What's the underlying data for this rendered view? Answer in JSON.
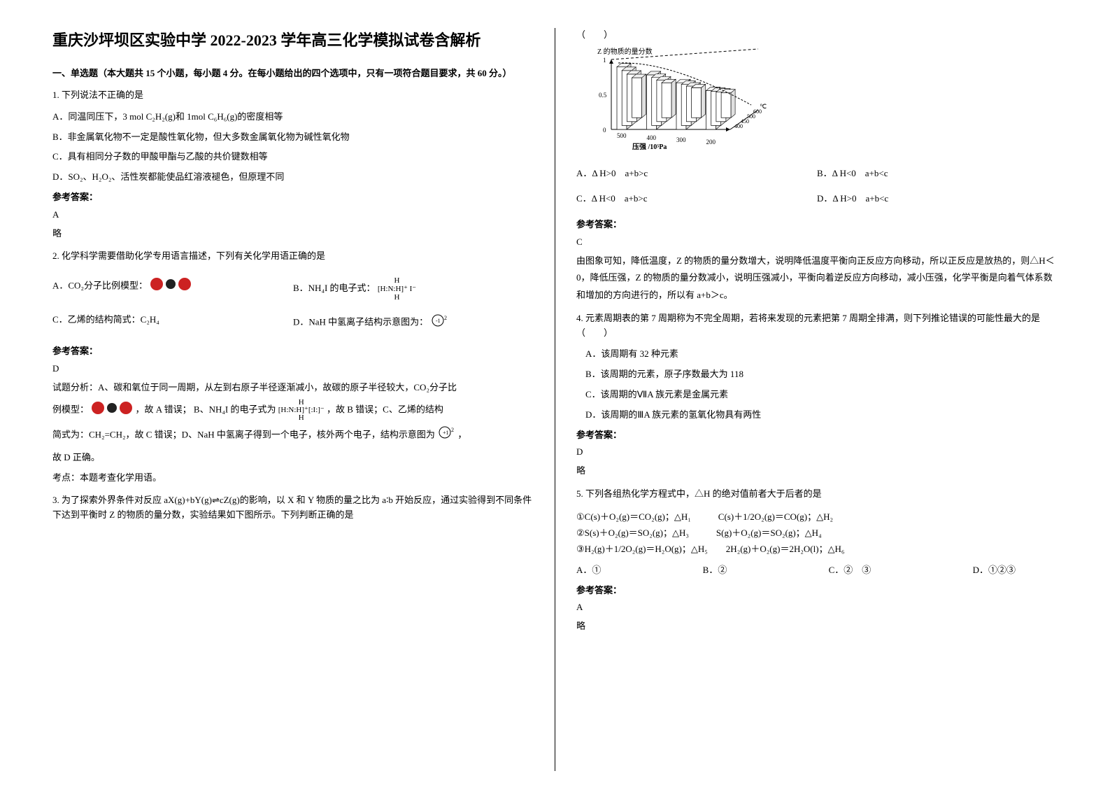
{
  "title": "重庆沙坪坝区实验中学 2022-2023 学年高三化学模拟试卷含解析",
  "section1": "一、单选题（本大题共 15 个小题，每小题 4 分。在每小题给出的四个选项中，只有一项符合题目要求，共 60 分。）",
  "answer_label": "参考答案：",
  "q1": {
    "stem": "1. 下列说法不正确的是",
    "A": "A．同温同压下，3 mol C₂H₂(g)和 1mol C₆H₆(g)的密度相等",
    "B": "B．非金属氧化物不一定是酸性氧化物，但大多数金属氧化物为碱性氧化物",
    "C": "C．具有相同分子数的甲酸甲酯与乙酸的共价键数相等",
    "D": "D．SO₂、H₂O₂、活性炭都能使品红溶液褪色，但原理不同",
    "ans": "A",
    "note": "略"
  },
  "q2": {
    "stem": "2. 化学科学需要借助化学专用语言描述，下列有关化学用语正确的是",
    "A_pre": "A．CO₂分子比例模型：",
    "B_pre": "B．NH₄I 的电子式：",
    "B_formula": "[H:N:H]⁺ I⁻",
    "C": "C．乙烯的结构简式：C₂H₄",
    "D_pre": "D．NaH 中氢离子结构示意图为：",
    "ans": "D",
    "exp1_pre": "试题分析：A、碳和氧位于同一周期，从左到右原子半径逐渐减小，故碳的原子半径较大，CO₂分子比",
    "exp2_pre": "例模型：",
    "exp2_mid": "，故 A 错误； B、NH₄I 的电子式为",
    "exp2_post": "，故 B 错误；C、乙烯的结构",
    "exp3_pre": "简式为：CH₂=CH₂，故 C 错误；D、NaH 中氢离子得到一个电子，核外两个电子，结构示意图为",
    "exp3_post": "，",
    "exp4": "故 D 正确。",
    "exp5": "考点：本题考查化学用语。"
  },
  "q3": {
    "stem": "3. 为了探索外界条件对反应 aX(g)+bY(g)⇌cZ(g)的影响，以 X 和 Y 物质的量之比为 a∶b 开始反应，通过实验得到不同条件下达到平衡时 Z 的物质的量分数，实验结果如下图所示。下列判断正确的是",
    "paren": "（　　）",
    "chart": {
      "ylabel": "Z 的物质的量分数",
      "xlabel": "压强 /10⁵Pa",
      "xticks": [
        "500",
        "400",
        "300",
        "200"
      ],
      "templabels": [
        "400",
        "450",
        "500",
        "600"
      ],
      "tempunit": "℃",
      "ymax": 1,
      "ymid": 0.5,
      "colors": {
        "axis": "#000000",
        "bar_fill": "#ffffff",
        "bar_stroke": "#000000",
        "curve": "#000000",
        "dashed": "#000000"
      }
    },
    "A": "A．Δ H>0　a+b>c",
    "B": "B．Δ H<0　a+b<c",
    "C": "C．Δ H<0　a+b>c",
    "D": "D．Δ H>0　a+b<c",
    "ans": "C",
    "exp": "由图象可知，降低温度，Z 的物质的量分数增大，说明降低温度平衡向正反应方向移动，所以正反应是放热的，则△H＜0，降低压强，Z 的物质的量分数减小，说明压强减小，平衡向着逆反应方向移动，减小压强，化学平衡是向着气体系数和增加的方向进行的，所以有 a+b＞c。"
  },
  "q4": {
    "stem": "4. 元素周期表的第 7 周期称为不完全周期，若将来发现的元素把第 7 周期全排满，则下列推论错误的可能性最大的是　（　　）",
    "A": "A．该周期有 32 种元素",
    "B": "B．该周期的元素，原子序数最大为 118",
    "C": "C．该周期的ⅦA 族元素是金属元素",
    "D": "D．该周期的ⅢA 族元素的氢氧化物具有两性",
    "ans": "D",
    "note": "略"
  },
  "q5": {
    "stem": "5. 下列各组热化学方程式中，△H 的绝对值前者大于后者的是",
    "eq1": "①C(s)＋O₂(g)＝CO₂(g)；△H₁　　　C(s)＋1/2O₂(g)＝CO(g)；△H₂",
    "eq2": "②S(s)＋O₂(g)＝SO₂(g)；△H₃　　　S(g)＋O₂(g)＝SO₂(g)；△H₄",
    "eq3": "③H₂(g)＋1/2O₂(g)＝H₂O(g)；△H₅　　2H₂(g)＋O₂(g)＝2H₂O(l)；△H₆",
    "A": "A．①",
    "B": "B．②",
    "C": "C．②　③",
    "D": "D．①②③",
    "ans": "A",
    "note": "略"
  }
}
